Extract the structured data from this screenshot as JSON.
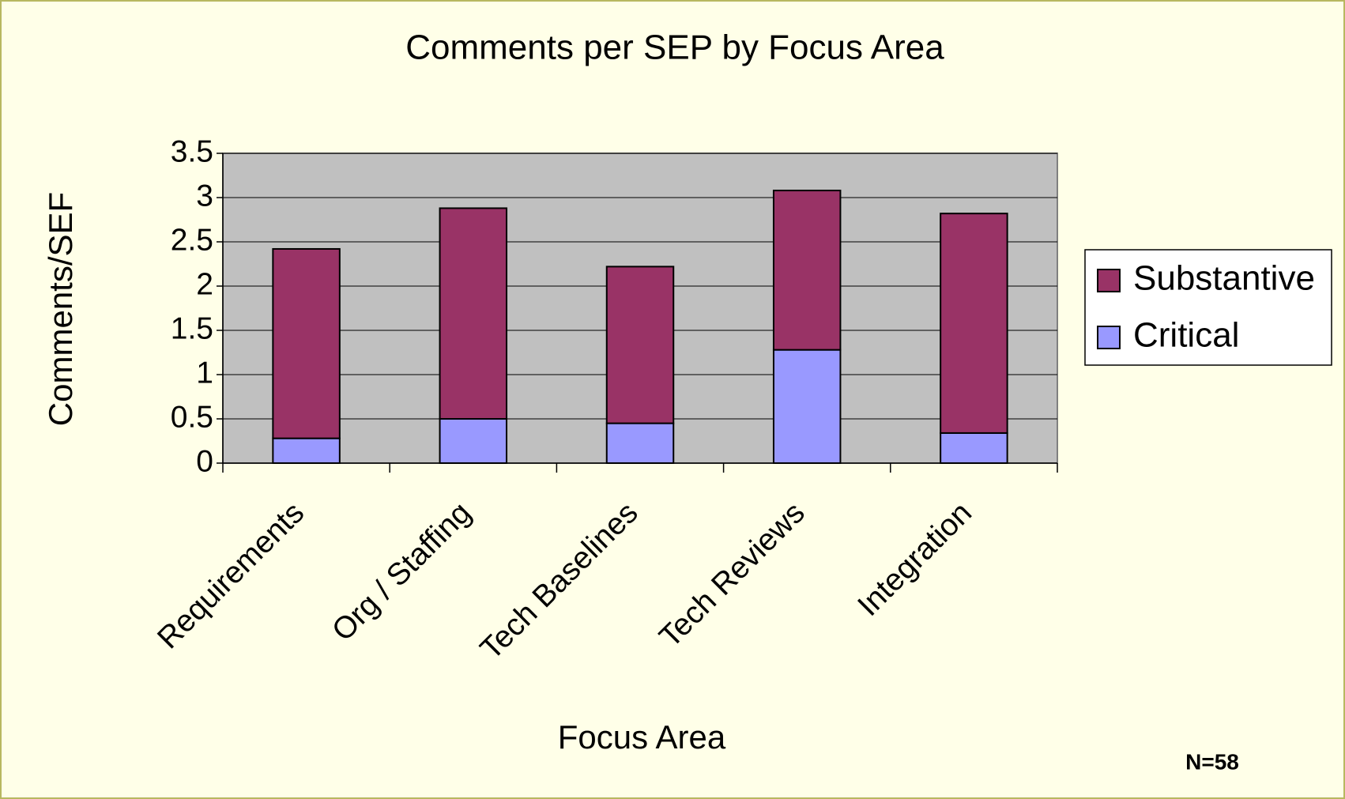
{
  "chart_data": {
    "type": "stacked_bar",
    "title": "Comments per SEP by Focus Area",
    "x_label": "Focus Area",
    "y_label": "Comments/SEF",
    "annotation": "N=58",
    "categories": [
      "Requirements",
      "Org / Staffing",
      "Tech Baselines",
      "Tech Reviews",
      "Integration"
    ],
    "series": [
      {
        "name": "Critical",
        "color": "#9999ff",
        "values": [
          0.28,
          0.5,
          0.45,
          1.28,
          0.34
        ]
      },
      {
        "name": "Substantive",
        "color": "#993366",
        "values": [
          2.14,
          2.38,
          1.77,
          1.8,
          2.48
        ]
      }
    ],
    "ylim": [
      0,
      3.5
    ],
    "yticks": [
      0,
      0.5,
      1,
      1.5,
      2,
      2.5,
      3,
      3.5
    ],
    "grid": true,
    "legend": "right"
  }
}
